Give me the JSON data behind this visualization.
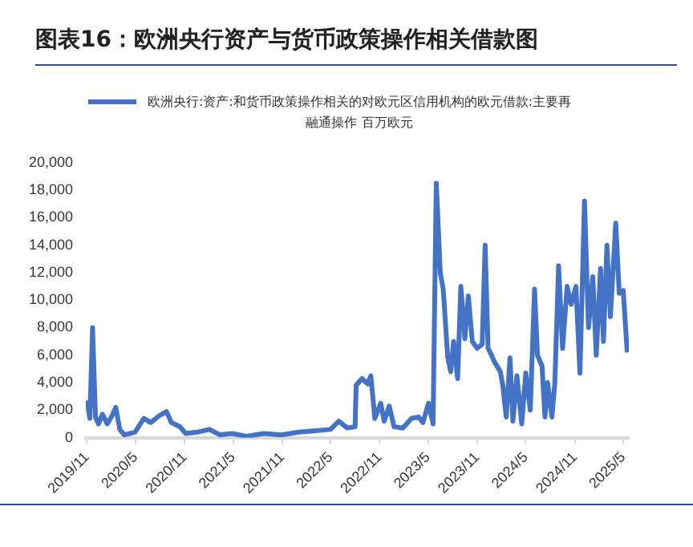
{
  "chart_data": {
    "type": "line",
    "title": "图表16：欧洲央行资产与货币政策操作相关借款图",
    "series": [
      {
        "name": "欧洲央行:资产:和货币政策操作相关的对欧元区信用机构的欧元借款:主要再融通操作 百万欧元",
        "color": "#4472c4",
        "x": [
          "2019-11-01",
          "2019-11-12",
          "2019-11-22",
          "2019-12-03",
          "2019-12-14",
          "2019-12-29",
          "2020-01-16",
          "2020-02-03",
          "2020-02-17",
          "2020-03-03",
          "2020-03-20",
          "2020-04-29",
          "2020-06-01",
          "2020-06-27",
          "2020-07-29",
          "2020-08-25",
          "2020-09-12",
          "2020-10-14",
          "2020-11-05",
          "2020-12-18",
          "2021-02-01",
          "2021-03-14",
          "2021-04-27",
          "2021-06-20",
          "2021-08-25",
          "2021-10-29",
          "2022-01-03",
          "2022-03-07",
          "2022-05-01",
          "2022-06-01",
          "2022-07-03",
          "2022-08-01",
          "2022-08-05",
          "2022-08-27",
          "2022-09-18",
          "2022-09-29",
          "2022-10-14",
          "2022-11-05",
          "2022-11-18",
          "2022-12-07",
          "2022-12-25",
          "2023-01-27",
          "2023-02-28",
          "2023-03-27",
          "2023-04-12",
          "2023-05-03",
          "2023-05-20",
          "2023-06-01",
          "2023-06-16",
          "2023-06-27",
          "2023-07-14",
          "2023-07-25",
          "2023-08-05",
          "2023-08-20",
          "2023-09-01",
          "2023-09-16",
          "2023-09-29",
          "2023-10-14",
          "2023-11-01",
          "2023-11-20",
          "2023-12-01",
          "2023-12-12",
          "2023-12-25",
          "2024-01-05",
          "2024-01-27",
          "2024-02-05",
          "2024-02-18",
          "2024-03-03",
          "2024-03-14",
          "2024-03-29",
          "2024-04-16",
          "2024-05-01",
          "2024-05-18",
          "2024-06-03",
          "2024-06-14",
          "2024-07-01",
          "2024-07-12",
          "2024-07-22",
          "2024-08-07",
          "2024-08-18",
          "2024-09-01",
          "2024-09-16",
          "2024-10-03",
          "2024-10-18",
          "2024-11-05",
          "2024-11-20",
          "2024-12-07",
          "2024-12-22",
          "2025-01-07",
          "2025-01-20",
          "2025-02-05",
          "2025-02-16",
          "2025-03-01",
          "2025-03-14",
          "2025-04-03",
          "2025-04-16",
          "2025-05-01",
          "2025-05-16"
        ],
        "values": [
          2700,
          1400,
          8000,
          1500,
          1000,
          1700,
          1000,
          1600,
          2200,
          600,
          200,
          400,
          1400,
          1100,
          1600,
          1900,
          1100,
          800,
          300,
          400,
          600,
          200,
          300,
          100,
          300,
          200,
          400,
          500,
          600,
          1200,
          700,
          800,
          3800,
          4300,
          3900,
          4500,
          1400,
          2500,
          1200,
          2300,
          800,
          700,
          1400,
          1500,
          1100,
          2500,
          1000,
          18500,
          12000,
          10800,
          5800,
          4800,
          7000,
          4300,
          11000,
          7200,
          10300,
          7000,
          6500,
          6800,
          14000,
          6500,
          6000,
          5500,
          4800,
          3800,
          1500,
          5800,
          1200,
          4500,
          1000,
          4700,
          2000,
          10800,
          6000,
          5200,
          1500,
          4000,
          1500,
          4000,
          12500,
          6500,
          11000,
          9700,
          11000,
          4700,
          17200,
          8000,
          11700,
          6000,
          12300,
          7000,
          14000,
          8800,
          15600,
          10500,
          10700,
          6200
        ]
      }
    ],
    "xlim": [
      "2019-10-28",
      "2025-05-22"
    ],
    "xticks": [
      {
        "value": "2019-11-01",
        "label": "2019/11"
      },
      {
        "value": "2020-05-01",
        "label": "2020/5"
      },
      {
        "value": "2020-11-01",
        "label": "2020/11"
      },
      {
        "value": "2021-05-01",
        "label": "2021/5"
      },
      {
        "value": "2021-11-01",
        "label": "2021/11"
      },
      {
        "value": "2022-05-01",
        "label": "2022/5"
      },
      {
        "value": "2022-11-01",
        "label": "2022/11"
      },
      {
        "value": "2023-05-01",
        "label": "2023/5"
      },
      {
        "value": "2023-11-01",
        "label": "2023/11"
      },
      {
        "value": "2024-05-01",
        "label": "2024/5"
      },
      {
        "value": "2024-11-01",
        "label": "2024/11"
      },
      {
        "value": "2025-05-01",
        "label": "2025/5"
      }
    ],
    "ylim": [
      0,
      20000
    ],
    "yticks": [
      0,
      {
        "value": 2000,
        "label": "2,000"
      },
      {
        "value": 4000,
        "label": "4,000"
      },
      {
        "value": 6000,
        "label": "6,000"
      },
      {
        "value": 8000,
        "label": "8,000"
      },
      {
        "value": 10000,
        "label": "10,000"
      },
      {
        "value": 12000,
        "label": "12,000"
      },
      {
        "value": 14000,
        "label": "14,000"
      },
      {
        "value": 16000,
        "label": "16,000"
      },
      {
        "value": 18000,
        "label": "18,000"
      },
      {
        "value": 20000,
        "label": "20,000"
      }
    ],
    "grid": false,
    "legend": "top",
    "marker": "none",
    "line_style": "solid"
  }
}
